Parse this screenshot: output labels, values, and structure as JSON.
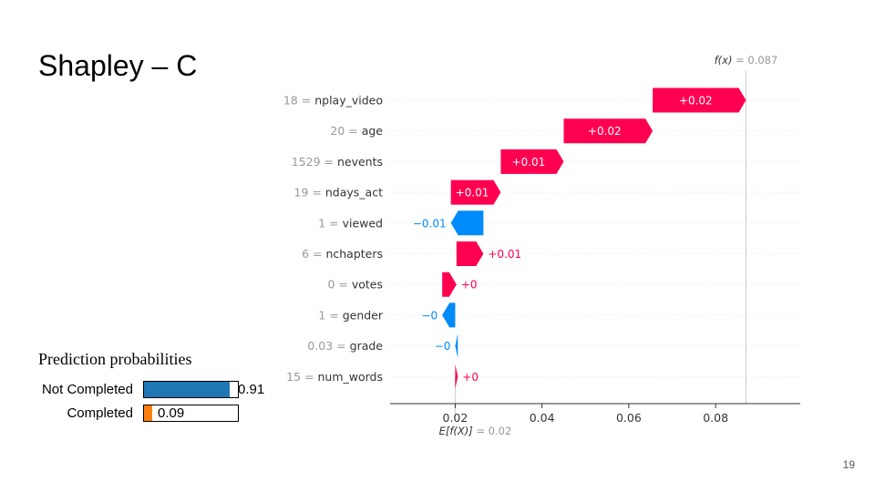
{
  "slide": {
    "title": "Shapley – C",
    "page_number": "19"
  },
  "chart_data": {
    "type": "waterfall",
    "fx_label": "f(x)",
    "fx_value": 0.087,
    "fx_value_text": "= 0.087",
    "efx_label": "E[f(X)]",
    "efx_value": 0.02,
    "efx_value_text": "= 0.02",
    "xlim": [
      0.005,
      0.0995
    ],
    "xticks": [
      0.02,
      0.04,
      0.06,
      0.08
    ],
    "xtick_labels": [
      "0.02",
      "0.04",
      "0.06",
      "0.08"
    ],
    "positive_color": "#ff0051",
    "negative_color": "#008bfb",
    "features": [
      {
        "value_label": "18",
        "name": "nplay_video",
        "start": 0.0655,
        "end": 0.087,
        "label": "+0.02"
      },
      {
        "value_label": "20",
        "name": "age",
        "start": 0.045,
        "end": 0.0655,
        "label": "+0.02"
      },
      {
        "value_label": "1529",
        "name": "nevents",
        "start": 0.0305,
        "end": 0.045,
        "label": "+0.01"
      },
      {
        "value_label": "19",
        "name": "ndays_act",
        "start": 0.019,
        "end": 0.0305,
        "label": "+0.01"
      },
      {
        "value_label": "1",
        "name": "viewed",
        "start": 0.0265,
        "end": 0.019,
        "label": "−0.01"
      },
      {
        "value_label": "6",
        "name": "nchapters",
        "start": 0.0203,
        "end": 0.0265,
        "label": "+0.01"
      },
      {
        "value_label": "0",
        "name": "votes",
        "start": 0.017,
        "end": 0.0203,
        "label": "+0"
      },
      {
        "value_label": "1",
        "name": "gender",
        "start": 0.02,
        "end": 0.017,
        "label": "−0"
      },
      {
        "value_label": "0.03",
        "name": "grade",
        "start": 0.0206,
        "end": 0.02,
        "label": "−0"
      },
      {
        "value_label": "15",
        "name": "num_words",
        "start": 0.02,
        "end": 0.0206,
        "label": "+0"
      }
    ]
  },
  "prediction_probabilities": {
    "title": "Prediction probabilities",
    "rows": [
      {
        "label": "Not Completed",
        "value": 0.91,
        "value_text": "0.91",
        "color": "#1f77b4"
      },
      {
        "label": "Completed",
        "value": 0.09,
        "value_text": "0.09",
        "color": "#ff7f0e"
      }
    ]
  }
}
